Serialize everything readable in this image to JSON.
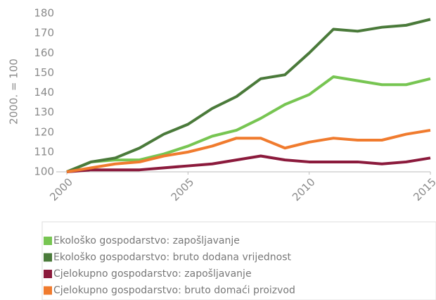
{
  "chart_data": {
    "type": "line",
    "y_label": "2000. = 100",
    "x": [
      2000,
      2001,
      2002,
      2003,
      2004,
      2005,
      2006,
      2007,
      2008,
      2009,
      2010,
      2011,
      2012,
      2013,
      2014,
      2015
    ],
    "xlim": [
      2000,
      2015
    ],
    "xticks": [
      2000,
      2005,
      2010,
      2015
    ],
    "ylim": [
      100,
      180
    ],
    "yticks": [
      100,
      110,
      120,
      130,
      140,
      150,
      160,
      170,
      180
    ],
    "grid": false,
    "legend": "bottom",
    "series": [
      {
        "name": "Ekološko gospodarstvo: zapošljavanje",
        "color": "#77c552",
        "values": [
          100,
          105,
          106,
          106,
          109,
          113,
          118,
          121,
          127,
          134,
          139,
          148,
          146,
          144,
          144,
          147
        ]
      },
      {
        "name": "Ekološko gospodarstvo: bruto dodana vrijednost",
        "color": "#4a7a3a",
        "values": [
          100,
          105,
          107,
          112,
          119,
          124,
          132,
          138,
          147,
          149,
          160,
          172,
          171,
          173,
          174,
          177
        ]
      },
      {
        "name": "Cjelokupno gospodarstvo: zapošljavanje",
        "color": "#8b1a3c",
        "values": [
          100,
          101,
          101,
          101,
          102,
          103,
          104,
          106,
          108,
          106,
          105,
          105,
          105,
          104,
          105,
          107
        ]
      },
      {
        "name": "Cjelokupno gospodarstvo: bruto domaći proizvod",
        "color": "#f07b2e",
        "values": [
          100,
          102,
          104,
          105,
          108,
          110,
          113,
          117,
          117,
          112,
          115,
          117,
          116,
          116,
          119,
          121
        ]
      }
    ]
  }
}
